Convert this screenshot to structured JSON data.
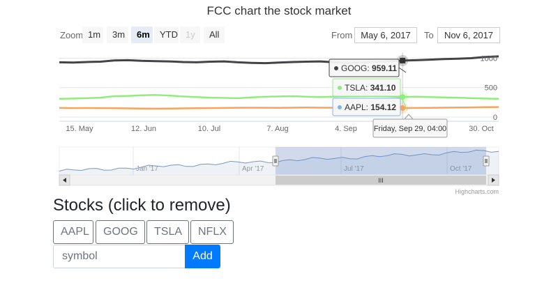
{
  "chart_data": {
    "type": "line",
    "title": "FCC chart the stock market",
    "x_ticks": [
      "15. May",
      "12. Jun",
      "10. Jul",
      "7. Aug",
      "4. Sep",
      "2. Oct",
      "30. Oct"
    ],
    "y_ticks": [
      1000,
      500,
      0
    ],
    "ylim": [
      0,
      1100
    ],
    "grid": true,
    "series": [
      {
        "name": "GOOG",
        "color": "#434348",
        "values": [
          930,
          925,
          935,
          940,
          960,
          965,
          955,
          950,
          945,
          935,
          930,
          940,
          945,
          930,
          920,
          915,
          925,
          935,
          940,
          945,
          930,
          920,
          925,
          935,
          945,
          959.11,
          965,
          975,
          985,
          990,
          1000,
          1020,
          1030
        ]
      },
      {
        "name": "TSLA",
        "color": "#90ed7d",
        "values": [
          310,
          315,
          320,
          330,
          355,
          360,
          370,
          375,
          365,
          350,
          340,
          330,
          325,
          320,
          335,
          345,
          350,
          355,
          345,
          340,
          345,
          350,
          355,
          360,
          350,
          341.1,
          345,
          340,
          335,
          330,
          320,
          315,
          310
        ]
      },
      {
        "name": "AAPL",
        "color": "#f7a35c",
        "values": [
          155,
          153,
          154,
          152,
          150,
          148,
          145,
          143,
          145,
          148,
          150,
          152,
          155,
          158,
          160,
          158,
          157,
          160,
          162,
          160,
          158,
          157,
          156,
          155,
          154.5,
          154.12,
          155,
          157,
          160,
          163,
          165,
          168,
          170
        ]
      }
    ],
    "navigator_ticks": [
      "Jan '17",
      "Apr '17",
      "Jul '17",
      "Oct '17"
    ],
    "tooltip": {
      "date": "Friday, Sep 29, 04:00",
      "point_index": 25,
      "items": [
        {
          "name": "GOOG",
          "value": "959.11"
        },
        {
          "name": "TSLA",
          "value": "341.10"
        },
        {
          "name": "AAPL",
          "value": "154.12"
        }
      ]
    }
  },
  "zoom": {
    "label": "Zoom",
    "buttons": [
      {
        "label": "1m",
        "state": "normal"
      },
      {
        "label": "3m",
        "state": "normal"
      },
      {
        "label": "6m",
        "state": "active"
      },
      {
        "label": "YTD",
        "state": "normal"
      },
      {
        "label": "1y",
        "state": "disabled"
      },
      {
        "label": "All",
        "state": "normal"
      }
    ]
  },
  "range": {
    "from_label": "From",
    "from_value": "May 6, 2017",
    "to_label": "To",
    "to_value": "Nov 6, 2017"
  },
  "scrollbar": {
    "grip": "III"
  },
  "credits": "Highcharts.com",
  "stocks": {
    "heading": "Stocks (click to remove)",
    "items": [
      "AAPL",
      "GOOG",
      "TSLA",
      "NFLX"
    ],
    "input_placeholder": "symbol",
    "add_label": "Add"
  }
}
